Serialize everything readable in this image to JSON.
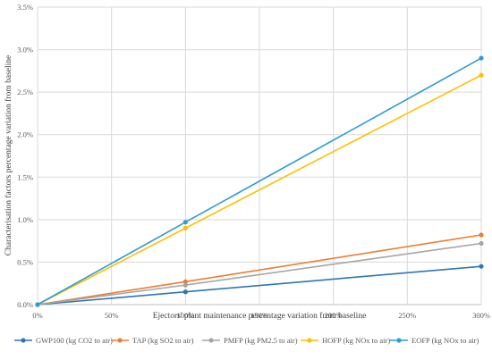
{
  "chart_data": {
    "type": "line",
    "title": "",
    "xlabel": "Ejectors' plant maintenance percentage variation from baseline",
    "ylabel": "Characterisation factors percentage variation from baseline",
    "x": [
      0,
      100,
      300
    ],
    "x_ticks": [
      "0%",
      "50%",
      "100%",
      "150%",
      "200%",
      "250%",
      "300%"
    ],
    "xlim": [
      0,
      300
    ],
    "y_ticks": [
      "0.0%",
      "0.5%",
      "1.0%",
      "1.5%",
      "2.0%",
      "2.5%",
      "3.0%",
      "3.5%"
    ],
    "ylim": [
      0,
      3.5
    ],
    "grid": true,
    "legend_position": "bottom",
    "series": [
      {
        "name": "GWP100 (kg CO2 to air)",
        "color": "#2e75b6",
        "values": [
          0,
          0.15,
          0.45
        ]
      },
      {
        "name": "TAP (kg SO2 to air)",
        "color": "#ed7d31",
        "values": [
          0,
          0.27,
          0.82
        ]
      },
      {
        "name": "PMFP (kg PM2.5 to air)",
        "color": "#a5a5a5",
        "values": [
          0,
          0.23,
          0.72
        ]
      },
      {
        "name": "HOFP (kg NOx to air)",
        "color": "#ffc000",
        "values": [
          0,
          0.9,
          2.7
        ]
      },
      {
        "name": "EOFP (kg NOx to air)",
        "color": "#2e9bd6",
        "values": [
          0,
          0.97,
          2.9
        ]
      }
    ]
  }
}
